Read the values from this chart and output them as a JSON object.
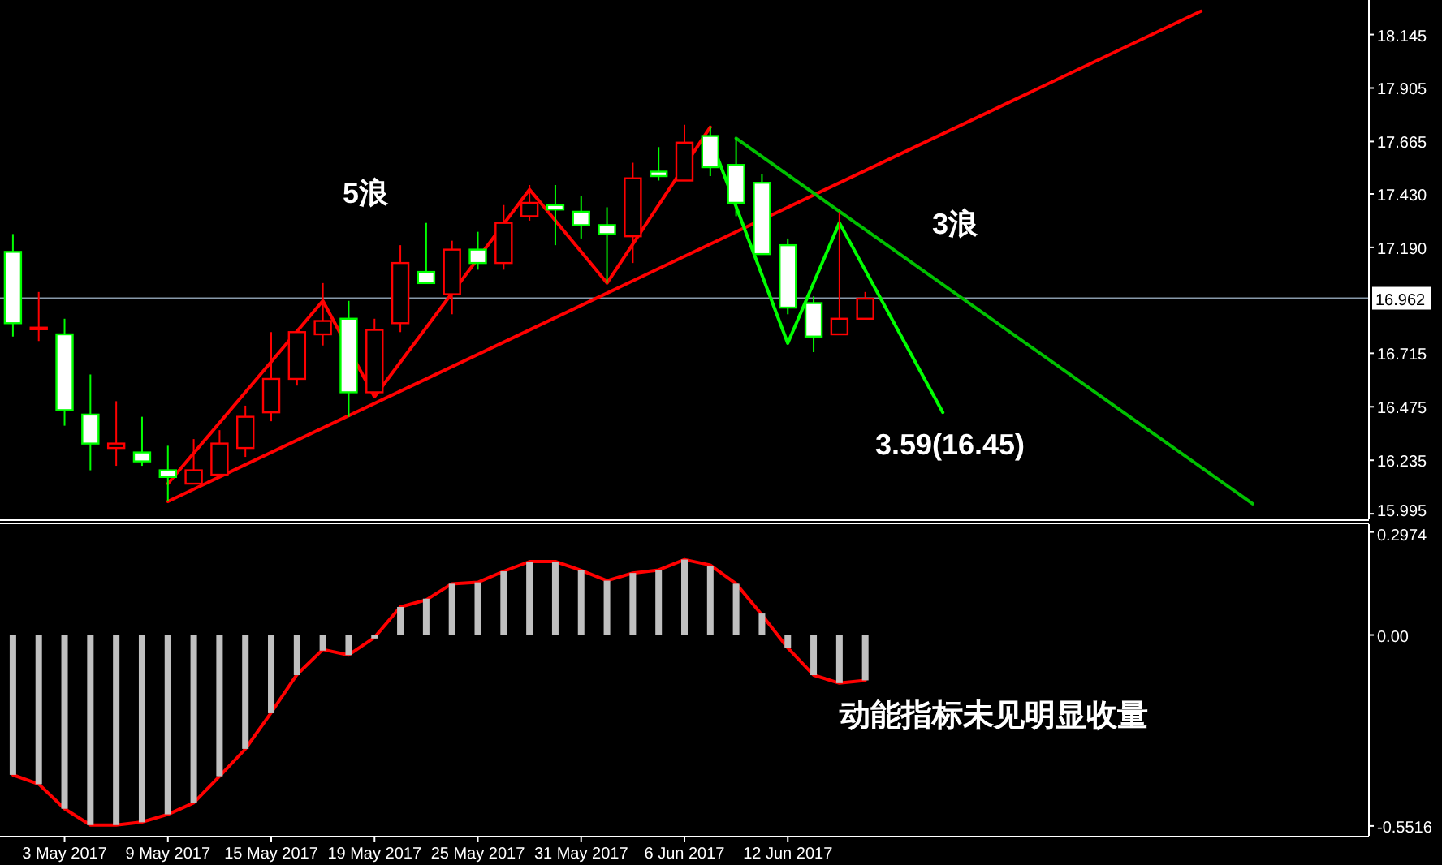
{
  "chart_data": [
    {
      "type": "candlestick",
      "categories": [
        null,
        null,
        null,
        null,
        null,
        null,
        null,
        null,
        null,
        null,
        null,
        null,
        null,
        null,
        null,
        null,
        null,
        null,
        null,
        null,
        null,
        null,
        null,
        null,
        null,
        null,
        null,
        null,
        null,
        null,
        null,
        null,
        null,
        null,
        null,
        null,
        null,
        null,
        null,
        null,
        null,
        null,
        null,
        null,
        null,
        null,
        null,
        null,
        null,
        null,
        null,
        null,
        null
      ],
      "ohlc": [
        [
          17.17,
          17.25,
          16.79,
          16.85
        ],
        [
          16.83,
          16.99,
          16.77,
          16.83
        ],
        [
          16.8,
          16.87,
          16.39,
          16.46
        ],
        [
          16.44,
          16.62,
          16.19,
          16.31
        ],
        [
          16.29,
          16.5,
          16.21,
          16.31
        ],
        [
          16.27,
          16.43,
          16.21,
          16.23
        ],
        [
          16.19,
          16.3,
          16.05,
          16.16
        ],
        [
          16.13,
          16.33,
          16.13,
          16.19
        ],
        [
          16.17,
          16.37,
          16.17,
          16.31
        ],
        [
          16.29,
          16.48,
          16.25,
          16.43
        ],
        [
          16.45,
          16.81,
          16.41,
          16.6
        ],
        [
          16.6,
          16.82,
          16.57,
          16.81
        ],
        [
          16.8,
          17.03,
          16.75,
          16.86
        ],
        [
          16.87,
          16.95,
          16.43,
          16.54
        ],
        [
          16.54,
          16.87,
          16.52,
          16.82
        ],
        [
          16.85,
          17.2,
          16.81,
          17.12
        ],
        [
          17.08,
          17.3,
          17.03,
          17.03
        ],
        [
          16.98,
          17.22,
          16.89,
          17.18
        ],
        [
          17.18,
          17.26,
          17.09,
          17.12
        ],
        [
          17.12,
          17.38,
          17.09,
          17.3
        ],
        [
          17.33,
          17.47,
          17.31,
          17.39
        ],
        [
          17.38,
          17.47,
          17.2,
          17.36
        ],
        [
          17.35,
          17.42,
          17.23,
          17.29
        ],
        [
          17.29,
          17.37,
          17.03,
          17.25
        ],
        [
          17.24,
          17.57,
          17.12,
          17.5
        ],
        [
          17.53,
          17.64,
          17.49,
          17.51
        ],
        [
          17.49,
          17.74,
          17.49,
          17.66
        ],
        [
          17.69,
          17.73,
          17.51,
          17.55
        ],
        [
          17.56,
          17.68,
          17.33,
          17.39
        ],
        [
          17.48,
          17.52,
          17.16,
          17.16
        ],
        [
          17.2,
          17.23,
          16.89,
          16.92
        ],
        [
          16.94,
          16.97,
          16.72,
          16.79
        ],
        [
          16.8,
          17.35,
          16.8,
          16.87
        ],
        [
          16.87,
          16.99,
          16.87,
          16.96
        ],
        null,
        null,
        null,
        null,
        null,
        null,
        null,
        null,
        null,
        null,
        null,
        null,
        null,
        null,
        null,
        null,
        null,
        null,
        null
      ],
      "series": [
        {
          "type": "line",
          "color": "#ff0000",
          "values": [
            null,
            null,
            null,
            null,
            null,
            null,
            16.05,
            null,
            null,
            null,
            null,
            null,
            null,
            null,
            null,
            null,
            null,
            null,
            null,
            null,
            null,
            null,
            null,
            null,
            null,
            null,
            null,
            null,
            null,
            null,
            null,
            null,
            null,
            null,
            null,
            null,
            null,
            null,
            null,
            null,
            null,
            null,
            null,
            null,
            null,
            null,
            18.25,
            null,
            null,
            null,
            null,
            null,
            null
          ]
        },
        {
          "type": "line",
          "color": "#00c000",
          "values": [
            null,
            null,
            null,
            null,
            null,
            null,
            null,
            null,
            null,
            null,
            null,
            null,
            null,
            null,
            null,
            null,
            null,
            null,
            null,
            null,
            null,
            null,
            null,
            null,
            null,
            null,
            null,
            null,
            17.68,
            null,
            null,
            null,
            null,
            null,
            null,
            null,
            null,
            null,
            null,
            null,
            null,
            null,
            null,
            null,
            null,
            null,
            null,
            null,
            16.04,
            null,
            null,
            null,
            null
          ]
        },
        {
          "type": "line",
          "color": "#ff0000",
          "values": [
            null,
            null,
            null,
            null,
            null,
            null,
            16.13,
            null,
            null,
            null,
            null,
            null,
            16.95,
            null,
            16.52,
            null,
            null,
            null,
            null,
            null,
            17.45,
            null,
            null,
            17.03,
            null,
            null,
            null,
            17.73,
            null,
            null,
            null,
            null,
            null,
            null,
            null,
            null,
            null,
            null,
            null,
            null,
            null,
            null,
            null,
            null,
            null,
            null,
            null,
            null,
            null,
            null,
            null,
            null,
            null
          ]
        },
        {
          "type": "line",
          "color": "#00ff00",
          "values": [
            null,
            null,
            null,
            null,
            null,
            null,
            null,
            null,
            null,
            null,
            null,
            null,
            null,
            null,
            null,
            null,
            null,
            null,
            null,
            null,
            null,
            null,
            null,
            null,
            null,
            null,
            null,
            17.68,
            null,
            null,
            16.76,
            null,
            17.3,
            null,
            null,
            null,
            16.45,
            null,
            null,
            null,
            null,
            null,
            null,
            null,
            null,
            null,
            null,
            null,
            null,
            null,
            null,
            null,
            null
          ]
        }
      ],
      "ylim": [
        15.97,
        18.3
      ],
      "yticks": [
        18.145,
        17.905,
        17.665,
        {
          "value": 17.43,
          "label": "17.430"
        },
        {
          "value": 17.19,
          "label": "17.190"
        },
        16.715,
        16.475,
        16.235,
        15.995
      ],
      "ref_lines": [
        {
          "axis": "y",
          "value": 16.962,
          "label": "16.962",
          "color": "#8899aa"
        }
      ],
      "annotations": [
        "5浪",
        "3浪",
        "3.59(16.45)"
      ]
    },
    {
      "type": "bar",
      "categories": [
        null,
        null,
        "3 May 2017",
        null,
        null,
        null,
        "9 May 2017",
        null,
        null,
        null,
        "15 May 2017",
        null,
        null,
        null,
        "19 May 2017",
        null,
        null,
        null,
        "25 May 2017",
        null,
        null,
        null,
        "31 May 2017",
        null,
        null,
        null,
        "6 Jun 2017",
        null,
        null,
        null,
        "12 Jun 2017",
        null,
        null,
        null,
        null,
        null,
        null,
        null,
        null,
        null,
        null,
        null,
        null,
        null,
        null,
        null,
        null,
        null,
        null,
        null,
        null,
        null,
        null
      ],
      "series": [
        {
          "type": "bar",
          "color": "#c0c0c0",
          "values": [
            -0.404,
            -0.431,
            -0.502,
            -0.549,
            -0.549,
            -0.541,
            -0.518,
            -0.486,
            -0.408,
            -0.329,
            -0.226,
            -0.116,
            -0.045,
            -0.058,
            -0.01,
            0.081,
            0.105,
            0.148,
            0.152,
            0.184,
            0.212,
            0.212,
            0.187,
            0.157,
            0.179,
            0.188,
            0.218,
            0.2,
            0.148,
            0.062,
            -0.037,
            -0.116,
            -0.139,
            -0.131,
            null,
            null,
            null,
            null,
            null,
            null,
            null,
            null,
            null,
            null,
            null,
            null,
            null,
            null,
            null,
            null,
            null,
            null,
            null
          ]
        },
        {
          "type": "line",
          "color": "#ff0000",
          "values": [
            -0.404,
            -0.431,
            -0.502,
            -0.549,
            -0.549,
            -0.54,
            -0.518,
            -0.485,
            -0.408,
            -0.329,
            -0.224,
            -0.114,
            -0.042,
            -0.058,
            -0.007,
            0.081,
            0.101,
            0.148,
            0.152,
            0.184,
            0.212,
            0.212,
            0.187,
            0.157,
            0.179,
            0.188,
            0.218,
            0.202,
            0.148,
            0.058,
            -0.037,
            -0.116,
            -0.139,
            -0.131,
            null,
            null,
            null,
            null,
            null,
            null,
            null,
            null,
            null,
            null,
            null,
            null,
            null,
            null,
            null,
            null,
            null,
            null,
            null
          ]
        }
      ],
      "ylim": [
        -0.58,
        0.32
      ],
      "yticks": [
        0.2974,
        {
          "value": 0,
          "label": "0.00"
        },
        -0.5516
      ],
      "annotations": [
        "动能指标未见明显收量"
      ]
    }
  ]
}
